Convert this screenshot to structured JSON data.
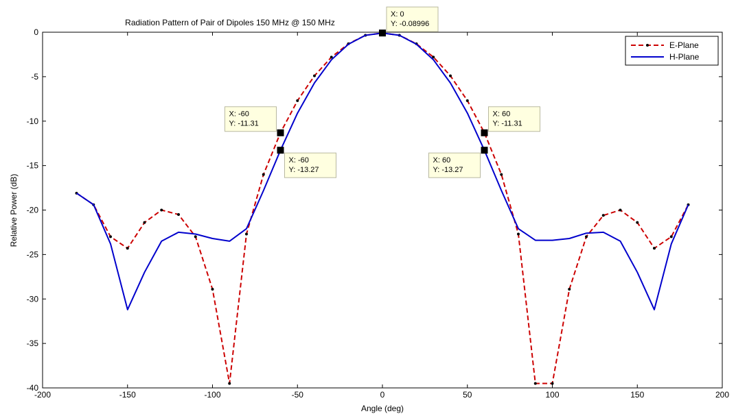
{
  "chart_data": {
    "type": "line",
    "title": "Radiation Pattern of Pair of Dipoles 150 MHz @ 150 MHz",
    "xlabel": "Angle (deg)",
    "ylabel": "Relative Power (dB)",
    "xlim": [
      -200,
      200
    ],
    "ylim": [
      -40,
      0
    ],
    "xticks": [
      -200,
      -150,
      -100,
      -50,
      0,
      50,
      100,
      150,
      200
    ],
    "yticks": [
      0,
      -5,
      -10,
      -15,
      -20,
      -25,
      -30,
      -35,
      -40
    ],
    "grid": false,
    "legend_position": "top-right",
    "series": [
      {
        "name": "E-Plane",
        "color": "#cc0000",
        "line_style": "dashed",
        "marker": "dot",
        "x": [
          -180,
          -170,
          -160,
          -150,
          -140,
          -130,
          -120,
          -110,
          -100,
          -90,
          -80,
          -70,
          -60,
          -50,
          -40,
          -30,
          -20,
          -10,
          0,
          10,
          20,
          30,
          40,
          50,
          60,
          70,
          80,
          90,
          100,
          110,
          120,
          130,
          140,
          150,
          160,
          170,
          180
        ],
        "y": [
          -18.1,
          -19.4,
          -23.0,
          -24.3,
          -21.4,
          -20.0,
          -20.5,
          -23.0,
          -28.9,
          -39.5,
          -22.7,
          -16.0,
          -11.31,
          -7.7,
          -4.9,
          -2.8,
          -1.3,
          -0.35,
          -0.09,
          -0.35,
          -1.3,
          -2.8,
          -4.9,
          -7.7,
          -11.31,
          -16.0,
          -22.7,
          -39.5,
          -39.5,
          -28.9,
          -23.0,
          -20.6,
          -20.0,
          -21.4,
          -24.3,
          -23.0,
          -19.4
        ]
      },
      {
        "name": "H-Plane",
        "color": "#0000cc",
        "line_style": "solid",
        "marker": "none",
        "x": [
          -180,
          -170,
          -160,
          -150,
          -140,
          -130,
          -120,
          -110,
          -100,
          -90,
          -80,
          -70,
          -60,
          -50,
          -40,
          -30,
          -20,
          -10,
          0,
          10,
          20,
          30,
          40,
          50,
          60,
          70,
          80,
          90,
          100,
          110,
          120,
          130,
          140,
          150,
          160,
          170,
          180
        ],
        "y": [
          -18.1,
          -19.4,
          -23.8,
          -31.2,
          -27.0,
          -23.5,
          -22.5,
          -22.7,
          -23.2,
          -23.5,
          -22.1,
          -17.8,
          -13.27,
          -9.1,
          -5.7,
          -3.1,
          -1.35,
          -0.35,
          -0.09,
          -0.35,
          -1.35,
          -3.1,
          -5.7,
          -9.1,
          -13.27,
          -17.8,
          -22.1,
          -23.4,
          -23.4,
          -23.2,
          -22.6,
          -22.5,
          -23.5,
          -27.0,
          -31.2,
          -23.8,
          -19.4
        ]
      }
    ],
    "datatips": [
      {
        "x": 0,
        "y": -0.08996,
        "label_x": "X: 0",
        "label_y": "Y: -0.08996",
        "placement": "above-right"
      },
      {
        "x": -60,
        "y": -11.31,
        "label_x": "X: -60",
        "label_y": "Y: -11.31",
        "placement": "above-left"
      },
      {
        "x": -60,
        "y": -13.27,
        "label_x": "X: -60",
        "label_y": "Y: -13.27",
        "placement": "below-right"
      },
      {
        "x": 60,
        "y": -11.31,
        "label_x": "X: 60",
        "label_y": "Y: -11.31",
        "placement": "above-right"
      },
      {
        "x": 60,
        "y": -13.27,
        "label_x": "X: 60",
        "label_y": "Y: -13.27",
        "placement": "below-left"
      }
    ]
  }
}
